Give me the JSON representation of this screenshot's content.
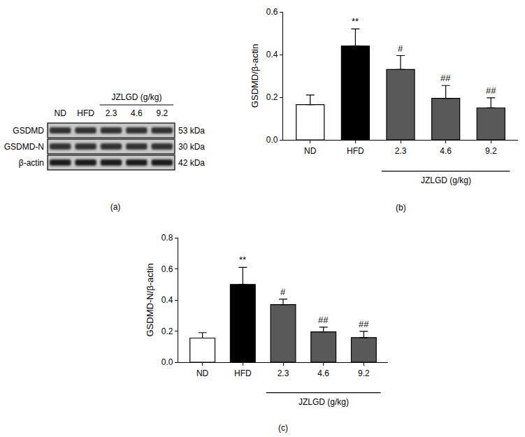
{
  "blot": {
    "panel": "(a)",
    "treatment": "JZLGD (g/kg)",
    "lanes": [
      "ND",
      "HFD",
      "2.3",
      "4.6",
      "9.2"
    ],
    "group_lanes": [
      "2.3",
      "4.6",
      "9.2"
    ],
    "rows": [
      {
        "label": "GSDMD",
        "size": "53 kDa"
      },
      {
        "label": "GSDMD-N",
        "size": "30 kDa"
      },
      {
        "label": "β-actin",
        "size": "42 kDa"
      }
    ]
  },
  "chart_data": [
    {
      "type": "bar",
      "panel": "(b)",
      "y_label": "GSDMD/β-actin",
      "categories": [
        "ND",
        "HFD",
        "2.3",
        "4.6",
        "9.2"
      ],
      "values": [
        0.165,
        0.44,
        0.33,
        0.195,
        0.15
      ],
      "errors": [
        0.045,
        0.08,
        0.065,
        0.06,
        0.047
      ],
      "significance": [
        null,
        "**",
        "#",
        "##",
        "##"
      ],
      "colors": [
        "#ffffff",
        "#000000",
        "#595959",
        "#595959",
        "#595959"
      ],
      "group": {
        "label": "JZLGD (g/kg)",
        "categories": [
          "2.3",
          "4.6",
          "9.2"
        ]
      },
      "ylim": [
        0,
        0.6
      ],
      "yticks": [
        {
          "value": 0,
          "label": "0.0"
        },
        0.2,
        0.4,
        0.6
      ],
      "grid": false
    },
    {
      "type": "bar",
      "panel": "(c)",
      "y_label": "GSDMD-N/β-actin",
      "categories": [
        "ND",
        "HFD",
        "2.3",
        "4.6",
        "9.2"
      ],
      "values": [
        0.155,
        0.5,
        0.37,
        0.195,
        0.158
      ],
      "errors": [
        0.035,
        0.11,
        0.035,
        0.03,
        0.04
      ],
      "significance": [
        null,
        "**",
        "#",
        "##",
        "##"
      ],
      "colors": [
        "#ffffff",
        "#000000",
        "#595959",
        "#595959",
        "#595959"
      ],
      "group": {
        "label": "JZLGD (g/kg)",
        "categories": [
          "2.3",
          "4.6",
          "9.2"
        ]
      },
      "ylim": [
        0,
        0.8
      ],
      "yticks": [
        {
          "value": 0,
          "label": "0.0"
        },
        0.2,
        0.4,
        0.6,
        0.8
      ],
      "grid": false
    }
  ]
}
